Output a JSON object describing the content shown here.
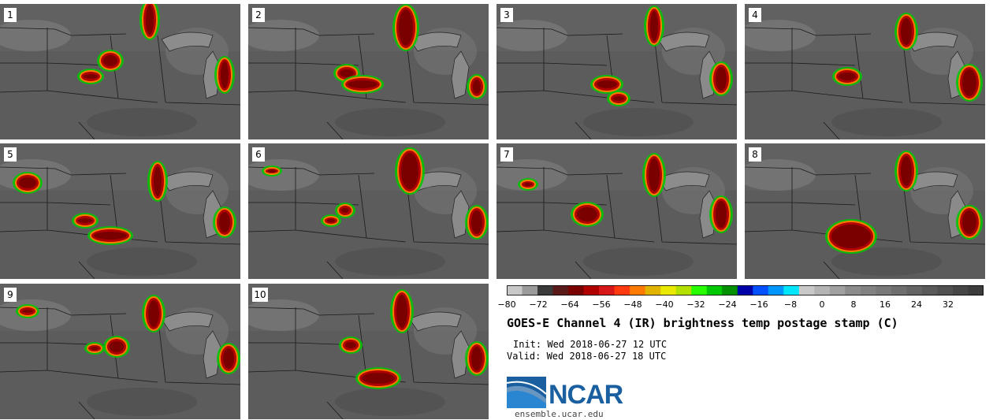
{
  "panels": [
    {
      "label": "1"
    },
    {
      "label": "2"
    },
    {
      "label": "3"
    },
    {
      "label": "4"
    },
    {
      "label": "5"
    },
    {
      "label": "6"
    },
    {
      "label": "7"
    },
    {
      "label": "8"
    },
    {
      "label": "9"
    },
    {
      "label": "10"
    }
  ],
  "colorbar": {
    "colors": [
      "#c8c8c8",
      "#9b9b9b",
      "#3a3a3a",
      "#5a1a1a",
      "#7a0000",
      "#b00000",
      "#d81818",
      "#ff3a10",
      "#ff7a00",
      "#e0b400",
      "#e8e800",
      "#b4e000",
      "#28ff00",
      "#00c800",
      "#009000",
      "#0000a8",
      "#0050ff",
      "#0096ff",
      "#00e6ff",
      "#c8c8c8",
      "#b4b4b4",
      "#a0a0a0",
      "#8c8c8c",
      "#828282",
      "#787878",
      "#6e6e6e",
      "#646464",
      "#5a5a5a",
      "#505050",
      "#464646",
      "#3c3c3c"
    ],
    "ticks": [
      "−80",
      "−72",
      "−64",
      "−56",
      "−48",
      "−40",
      "−32",
      "−24",
      "−16",
      "−8",
      "0",
      "8",
      "16",
      "24",
      "32"
    ]
  },
  "title": "GOES-E Channel 4 (IR) brightness temp postage stamp (C)",
  "init": "Init: Wed 2018-06-27 12 UTC",
  "valid": "Valid: Wed 2018-06-27 18 UTC",
  "logo": {
    "text": "NCAR",
    "url": "ensemble.ucar.edu"
  }
}
